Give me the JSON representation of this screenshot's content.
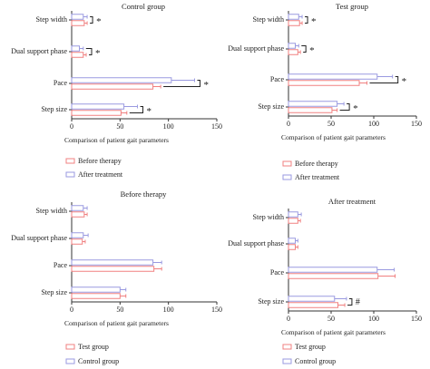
{
  "colors": {
    "before_therapy": "#f08080",
    "after_treatment": "#9a9ae0",
    "test_group": "#f08080",
    "control_group": "#9a9ae0",
    "axis": "#333333"
  },
  "chart_data": [
    {
      "type": "bar",
      "orientation": "horizontal",
      "title": "Control group",
      "categories": [
        "Step width",
        "Dual support phase",
        "Pace",
        "Step size"
      ],
      "series": [
        {
          "name": "After treatment",
          "color": "#9a9ae0",
          "values": [
            12,
            8,
            103,
            54
          ],
          "errors": [
            4,
            4,
            24,
            14
          ]
        },
        {
          "name": "Before therapy",
          "color": "#f08080",
          "values": [
            13,
            12,
            84,
            51
          ],
          "errors": [
            3,
            3,
            8,
            6
          ]
        }
      ],
      "significance": [
        "*",
        "*",
        "*",
        "*"
      ],
      "xlabel": "Comparison of patient gait parameters",
      "xlim": [
        0,
        150
      ],
      "xticks": [
        0,
        50,
        100,
        150
      ],
      "legend": [
        "Before therapy",
        "After treatment"
      ]
    },
    {
      "type": "bar",
      "orientation": "horizontal",
      "title": "Test group",
      "categories": [
        "Step width",
        "Dual support phase",
        "Pace",
        "Step size"
      ],
      "series": [
        {
          "name": "After treatment",
          "color": "#9a9ae0",
          "values": [
            12,
            8,
            104,
            57
          ],
          "errors": [
            4,
            4,
            18,
            8
          ]
        },
        {
          "name": "Before therapy",
          "color": "#f08080",
          "values": [
            13,
            11,
            83,
            51
          ],
          "errors": [
            3,
            3,
            9,
            6
          ]
        }
      ],
      "significance": [
        "*",
        "*",
        "*",
        "*"
      ],
      "xlabel": "Comparison of patient gait parameters",
      "xlim": [
        0,
        150
      ],
      "xticks": [
        0,
        50,
        100,
        150
      ],
      "legend": [
        "Before therapy",
        "After treatment"
      ]
    },
    {
      "type": "bar",
      "orientation": "horizontal",
      "title": "Before therapy",
      "categories": [
        "Step width",
        "Dual support phase",
        "Pace",
        "Step size"
      ],
      "series": [
        {
          "name": "Control group",
          "color": "#9a9ae0",
          "values": [
            12,
            12,
            84,
            50
          ],
          "errors": [
            4,
            5,
            9,
            6
          ]
        },
        {
          "name": "Test group",
          "color": "#f08080",
          "values": [
            13,
            11,
            85,
            50
          ],
          "errors": [
            3,
            3,
            8,
            6
          ]
        }
      ],
      "significance": [
        "",
        "",
        "",
        ""
      ],
      "xlabel": "Comparison of patient gait parameters",
      "xlim": [
        0,
        150
      ],
      "xticks": [
        0,
        50,
        100,
        150
      ],
      "legend": [
        "Test group",
        "Control group"
      ]
    },
    {
      "type": "bar",
      "orientation": "horizontal",
      "title": "After treatment",
      "categories": [
        "Step width",
        "Dual support phase",
        "Pace",
        "Step size"
      ],
      "series": [
        {
          "name": "Control group",
          "color": "#9a9ae0",
          "values": [
            11,
            8,
            104,
            54
          ],
          "errors": [
            4,
            3,
            20,
            14
          ]
        },
        {
          "name": "Test group",
          "color": "#f08080",
          "values": [
            11,
            8,
            105,
            58
          ],
          "errors": [
            3,
            3,
            20,
            8
          ]
        }
      ],
      "significance": [
        "",
        "",
        "",
        "#"
      ],
      "xlabel": "Comparison of patient gait parameters",
      "xlim": [
        0,
        150
      ],
      "xticks": [
        0,
        50,
        100,
        150
      ],
      "legend": [
        "Test group",
        "Control group"
      ]
    }
  ]
}
